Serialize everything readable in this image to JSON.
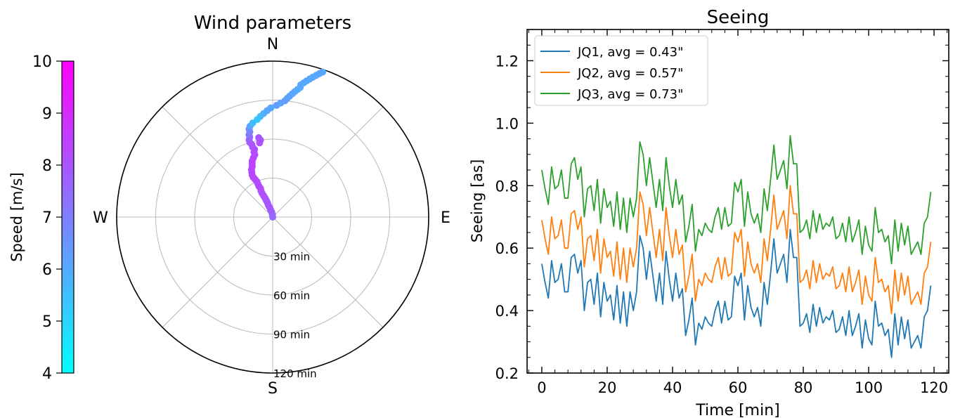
{
  "chart_data": [
    {
      "type": "polar-scatter",
      "title": "Wind parameters",
      "directions": {
        "n": "N",
        "e": "E",
        "s": "S",
        "w": "W"
      },
      "radial_ticks": [
        {
          "value": 30,
          "label": "30 min"
        },
        {
          "value": 60,
          "label": "60 min"
        },
        {
          "value": 90,
          "label": "90 min"
        },
        {
          "value": 120,
          "label": "120 min"
        }
      ],
      "rlim": [
        0,
        120
      ],
      "grid": true,
      "colorbar": {
        "label": "Speed [m/s]",
        "range": [
          4,
          10
        ],
        "ticks": [
          "4",
          "5",
          "6",
          "7",
          "8",
          "9",
          "10"
        ],
        "colormap": [
          "#00ffff",
          "#ff00ff"
        ]
      },
      "points_note_fields": [
        "r",
        "theta",
        "speed"
      ],
      "points": [
        [
          0,
          0,
          7.5
        ],
        [
          2,
          353,
          7.6
        ],
        [
          4,
          348,
          7.7
        ],
        [
          6,
          344,
          7.8
        ],
        [
          8,
          342,
          7.9
        ],
        [
          10,
          340,
          7.9
        ],
        [
          12,
          340,
          8.0
        ],
        [
          14,
          339,
          8.0
        ],
        [
          16,
          338,
          8.0
        ],
        [
          18,
          337,
          8.1
        ],
        [
          20,
          336,
          8.1
        ],
        [
          22,
          336,
          8.1
        ],
        [
          24,
          337,
          8.2
        ],
        [
          26,
          336,
          8.2
        ],
        [
          28,
          336,
          8.2
        ],
        [
          30,
          336,
          8.2
        ],
        [
          32,
          335,
          8.3
        ],
        [
          34,
          334,
          8.3
        ],
        [
          36,
          334,
          8.3
        ],
        [
          38,
          335,
          8.3
        ],
        [
          40,
          336,
          8.4
        ],
        [
          42,
          338,
          8.4
        ],
        [
          44,
          339,
          8.4
        ],
        [
          46,
          340,
          8.4
        ],
        [
          48,
          342,
          8.4
        ],
        [
          50,
          344,
          8.3
        ],
        [
          52,
          344,
          8.3
        ],
        [
          54,
          345,
          8.2
        ],
        [
          56,
          344,
          8.1
        ],
        [
          58,
          344,
          8.0
        ],
        [
          60,
          343,
          7.9
        ],
        [
          62,
          343,
          7.8
        ],
        [
          64,
          344,
          7.6
        ],
        [
          66,
          344,
          7.2
        ],
        [
          68,
          345,
          7.0
        ],
        [
          70,
          345,
          6.8
        ],
        [
          72,
          346,
          6.0
        ],
        [
          74,
          348,
          5.6
        ],
        [
          76,
          351,
          5.3
        ],
        [
          78,
          353,
          5.5
        ],
        [
          80,
          355,
          5.8
        ],
        [
          82,
          357,
          6.0
        ],
        [
          84,
          359,
          6.1
        ],
        [
          86,
          2,
          6.2
        ],
        [
          88,
          4,
          6.2
        ],
        [
          90,
          6,
          6.3
        ],
        [
          92,
          7,
          6.2
        ],
        [
          94,
          8,
          6.2
        ],
        [
          96,
          9,
          6.1
        ],
        [
          98,
          10,
          6.1
        ],
        [
          100,
          11,
          6.0
        ],
        [
          102,
          12,
          6.0
        ],
        [
          104,
          12,
          6.1
        ],
        [
          106,
          13,
          6.0
        ],
        [
          108,
          14,
          6.0
        ],
        [
          110,
          15,
          6.1
        ],
        [
          112,
          16,
          6.1
        ],
        [
          114,
          17,
          6.0
        ],
        [
          116,
          18,
          6.1
        ],
        [
          118,
          19,
          6.0
        ],
        [
          58,
          350,
          8.0
        ],
        [
          60,
          351,
          8.1
        ],
        [
          62,
          350,
          8.0
        ]
      ]
    },
    {
      "type": "line",
      "title": "Seeing",
      "xlabel": "Time [min]",
      "ylabel": "Seeing [as]",
      "xlim": [
        -4.5,
        124.5
      ],
      "ylim": [
        0.2,
        1.3
      ],
      "xticks": [
        0,
        20,
        40,
        60,
        80,
        100,
        120
      ],
      "yticks": [
        0.2,
        0.4,
        0.6,
        0.8,
        1.0,
        1.2
      ],
      "legend_position": "upper-left",
      "series": [
        {
          "name": "JQ1, avg = 0.43\"",
          "color": "#1f77b4",
          "values": [
            0.55,
            0.49,
            0.44,
            0.56,
            0.49,
            0.5,
            0.55,
            0.46,
            0.46,
            0.57,
            0.58,
            0.52,
            0.56,
            0.4,
            0.49,
            0.5,
            0.42,
            0.52,
            0.38,
            0.49,
            0.43,
            0.45,
            0.37,
            0.48,
            0.36,
            0.46,
            0.35,
            0.46,
            0.4,
            0.46,
            0.64,
            0.6,
            0.5,
            0.59,
            0.51,
            0.43,
            0.52,
            0.42,
            0.59,
            0.5,
            0.43,
            0.52,
            0.44,
            0.47,
            0.32,
            0.37,
            0.44,
            0.29,
            0.36,
            0.34,
            0.38,
            0.36,
            0.35,
            0.4,
            0.43,
            0.36,
            0.43,
            0.37,
            0.38,
            0.51,
            0.48,
            0.52,
            0.37,
            0.48,
            0.41,
            0.38,
            0.41,
            0.35,
            0.49,
            0.42,
            0.52,
            0.63,
            0.52,
            0.55,
            0.58,
            0.49,
            0.66,
            0.57,
            0.57,
            0.35,
            0.36,
            0.39,
            0.33,
            0.42,
            0.35,
            0.41,
            0.36,
            0.38,
            0.37,
            0.4,
            0.33,
            0.34,
            0.38,
            0.32,
            0.4,
            0.32,
            0.35,
            0.39,
            0.28,
            0.37,
            0.31,
            0.29,
            0.43,
            0.35,
            0.36,
            0.32,
            0.34,
            0.25,
            0.39,
            0.29,
            0.38,
            0.31,
            0.37,
            0.28,
            0.3,
            0.32,
            0.28,
            0.38,
            0.4,
            0.48
          ]
        },
        {
          "name": "JQ2, avg = 0.57\"",
          "color": "#ff7f0e",
          "values": [
            0.69,
            0.63,
            0.58,
            0.7,
            0.63,
            0.64,
            0.69,
            0.6,
            0.6,
            0.71,
            0.72,
            0.66,
            0.7,
            0.54,
            0.63,
            0.64,
            0.56,
            0.66,
            0.52,
            0.63,
            0.57,
            0.59,
            0.51,
            0.62,
            0.5,
            0.6,
            0.49,
            0.6,
            0.54,
            0.6,
            0.78,
            0.74,
            0.64,
            0.73,
            0.65,
            0.57,
            0.66,
            0.56,
            0.73,
            0.64,
            0.57,
            0.66,
            0.58,
            0.61,
            0.46,
            0.51,
            0.58,
            0.43,
            0.5,
            0.48,
            0.52,
            0.5,
            0.49,
            0.54,
            0.57,
            0.5,
            0.57,
            0.51,
            0.52,
            0.65,
            0.62,
            0.66,
            0.51,
            0.62,
            0.55,
            0.52,
            0.55,
            0.49,
            0.63,
            0.56,
            0.66,
            0.77,
            0.66,
            0.69,
            0.72,
            0.63,
            0.8,
            0.71,
            0.71,
            0.49,
            0.5,
            0.53,
            0.47,
            0.56,
            0.49,
            0.55,
            0.5,
            0.52,
            0.51,
            0.54,
            0.47,
            0.48,
            0.52,
            0.46,
            0.54,
            0.46,
            0.49,
            0.53,
            0.42,
            0.51,
            0.45,
            0.43,
            0.57,
            0.49,
            0.5,
            0.46,
            0.48,
            0.39,
            0.53,
            0.43,
            0.52,
            0.45,
            0.51,
            0.42,
            0.44,
            0.46,
            0.42,
            0.52,
            0.54,
            0.62
          ]
        },
        {
          "name": "JQ3, avg = 0.73\"",
          "color": "#2ca02c",
          "values": [
            0.85,
            0.79,
            0.74,
            0.86,
            0.79,
            0.8,
            0.85,
            0.76,
            0.76,
            0.87,
            0.89,
            0.82,
            0.86,
            0.7,
            0.79,
            0.8,
            0.72,
            0.82,
            0.68,
            0.79,
            0.73,
            0.75,
            0.67,
            0.78,
            0.66,
            0.76,
            0.65,
            0.76,
            0.7,
            0.76,
            0.94,
            0.9,
            0.8,
            0.89,
            0.81,
            0.73,
            0.82,
            0.72,
            0.89,
            0.8,
            0.73,
            0.82,
            0.74,
            0.77,
            0.62,
            0.67,
            0.74,
            0.59,
            0.66,
            0.64,
            0.68,
            0.66,
            0.65,
            0.7,
            0.73,
            0.66,
            0.73,
            0.67,
            0.68,
            0.81,
            0.78,
            0.82,
            0.67,
            0.78,
            0.71,
            0.68,
            0.71,
            0.65,
            0.79,
            0.72,
            0.82,
            0.93,
            0.82,
            0.85,
            0.88,
            0.79,
            0.96,
            0.87,
            0.87,
            0.65,
            0.66,
            0.69,
            0.63,
            0.72,
            0.65,
            0.71,
            0.66,
            0.68,
            0.67,
            0.7,
            0.63,
            0.64,
            0.68,
            0.62,
            0.7,
            0.62,
            0.65,
            0.69,
            0.58,
            0.67,
            0.61,
            0.59,
            0.73,
            0.65,
            0.66,
            0.62,
            0.64,
            0.55,
            0.69,
            0.59,
            0.68,
            0.61,
            0.67,
            0.58,
            0.6,
            0.62,
            0.58,
            0.68,
            0.7,
            0.78
          ]
        }
      ]
    }
  ]
}
